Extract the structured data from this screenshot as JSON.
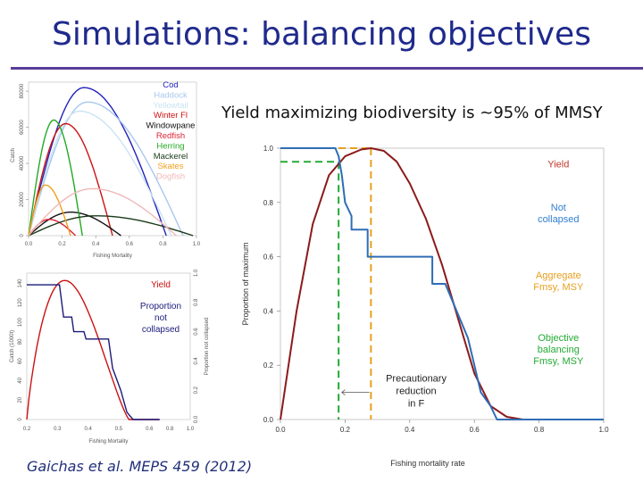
{
  "slide": {
    "title": "Simulations: balancing objectives",
    "subtitle": "Yield maximizing biodiversity is ~95% of MMSY",
    "citation": "Gaichas et al. MEPS  459 (2012)"
  },
  "colors": {
    "title": "#1f2a8c",
    "rule": "#5a3d9a",
    "yield": "#8b1a1a",
    "notCollapsed": "#2f6db5",
    "aggregate": "#e6a020",
    "objective": "#22aa33"
  },
  "chart_data": [
    {
      "id": "species-yield",
      "type": "line",
      "xlabel": "Fishing Mortality",
      "ylabel": "Catch",
      "xlim": [
        0,
        1
      ],
      "x_ticks": [
        "0.0",
        "0.2",
        "0.4",
        "0.6",
        "0.8",
        "1.0"
      ],
      "y_ticks": [
        "0",
        "20000",
        "40000",
        "60000",
        "80000"
      ],
      "ylim": [
        0,
        85000
      ],
      "series": [
        {
          "name": "Cod",
          "color": "#2222bb",
          "peak_x": 0.33,
          "peak_y": 82000,
          "end_x": 0.82
        },
        {
          "name": "Haddock",
          "color": "#a8c8ee",
          "peak_x": 0.35,
          "peak_y": 74000,
          "end_x": 0.92
        },
        {
          "name": "Yellowtail",
          "color": "#c9e3f2",
          "peak_x": 0.3,
          "peak_y": 69000,
          "end_x": 0.85
        },
        {
          "name": "Winter Fl",
          "color": "#cc1111",
          "peak_x": 0.22,
          "peak_y": 62000,
          "end_x": 0.5
        },
        {
          "name": "Windowpane",
          "color": "#111111",
          "peak_x": 0.25,
          "peak_y": 13000,
          "end_x": 0.55
        },
        {
          "name": "Redfish",
          "color": "#dd2233",
          "peak_x": 0.12,
          "peak_y": 9000,
          "end_x": 0.28
        },
        {
          "name": "Herring",
          "color": "#22aa22",
          "peak_x": 0.15,
          "peak_y": 64000,
          "end_x": 0.32
        },
        {
          "name": "Mackerel",
          "color": "#1a3a1a",
          "peak_x": 0.4,
          "peak_y": 11000,
          "end_x": 0.98
        },
        {
          "name": "Skates",
          "color": "#f2a020",
          "peak_x": 0.1,
          "peak_y": 28000,
          "end_x": 0.25
        },
        {
          "name": "Dogfish",
          "color": "#f0b8b8",
          "peak_x": 0.38,
          "peak_y": 26000,
          "end_x": 0.88
        }
      ]
    },
    {
      "id": "small-yield-vs-collapsed",
      "type": "line",
      "xlabel": "Fishing Mortality",
      "ylabel_left": "Catch (1000t)",
      "ylabel_right": "Proportion not collapsed",
      "xlim": [
        0.2,
        1.0
      ],
      "x_ticks": [
        "0.2",
        "0.3",
        "0.4",
        "0.5",
        "0.6",
        "0.8",
        "1.0"
      ],
      "y_ticks_left": [
        "0",
        "20",
        "40",
        "60",
        "80",
        "100",
        "120",
        "140"
      ],
      "y_ticks_right": [
        "0.0",
        "0.2",
        "0.4",
        "0.6",
        "0.8",
        "1.0"
      ],
      "legend": [
        "Yield",
        "Proportion not collapsed"
      ]
    },
    {
      "id": "main-tradeoff",
      "type": "line",
      "xlabel": "Fishing mortality rate",
      "ylabel": "Proportion of maximum",
      "xlim": [
        0,
        1
      ],
      "ylim": [
        0,
        1
      ],
      "x_ticks": [
        "0.0",
        "0.2",
        "0.4",
        "0.6",
        "0.8",
        "1.0"
      ],
      "y_ticks": [
        "0.0",
        "0.2",
        "0.4",
        "0.6",
        "0.8",
        "1.0"
      ],
      "series": [
        {
          "name": "Yield",
          "color": "#8b1a1a",
          "x": [
            0,
            0.05,
            0.1,
            0.15,
            0.2,
            0.25,
            0.28,
            0.32,
            0.36,
            0.4,
            0.45,
            0.5,
            0.55,
            0.6,
            0.65,
            0.7,
            0.75,
            0.8,
            1.0
          ],
          "y": [
            0,
            0.4,
            0.72,
            0.9,
            0.97,
            0.995,
            1.0,
            0.99,
            0.95,
            0.87,
            0.74,
            0.57,
            0.37,
            0.17,
            0.05,
            0.01,
            0.0,
            0.0,
            0.0
          ]
        },
        {
          "name": "Not collapsed",
          "color": "#2f6db5",
          "x": [
            0.0,
            0.17,
            0.18,
            0.19,
            0.2,
            0.22,
            0.22,
            0.27,
            0.27,
            0.47,
            0.47,
            0.51,
            0.58,
            0.62,
            0.65,
            0.67,
            0.75,
            1.0
          ],
          "y": [
            1.0,
            1.0,
            0.97,
            0.9,
            0.8,
            0.75,
            0.7,
            0.7,
            0.6,
            0.6,
            0.5,
            0.5,
            0.3,
            0.1,
            0.05,
            0.0,
            0.0,
            0.0
          ]
        }
      ],
      "reference_lines": [
        {
          "name": "Aggregate Fmsy, MSY",
          "color": "#e6a020",
          "x": 0.28,
          "y": 1.0
        },
        {
          "name": "Objective balancing Fmsy, MSY",
          "color": "#22aa33",
          "x": 0.18,
          "y": 0.95
        }
      ],
      "legend": [
        "Yield",
        "Not collapsed",
        "Aggregate Fmsy, MSY",
        "Objective balancing Fmsy, MSY"
      ],
      "annotation": "Precautionary reduction in F"
    }
  ]
}
